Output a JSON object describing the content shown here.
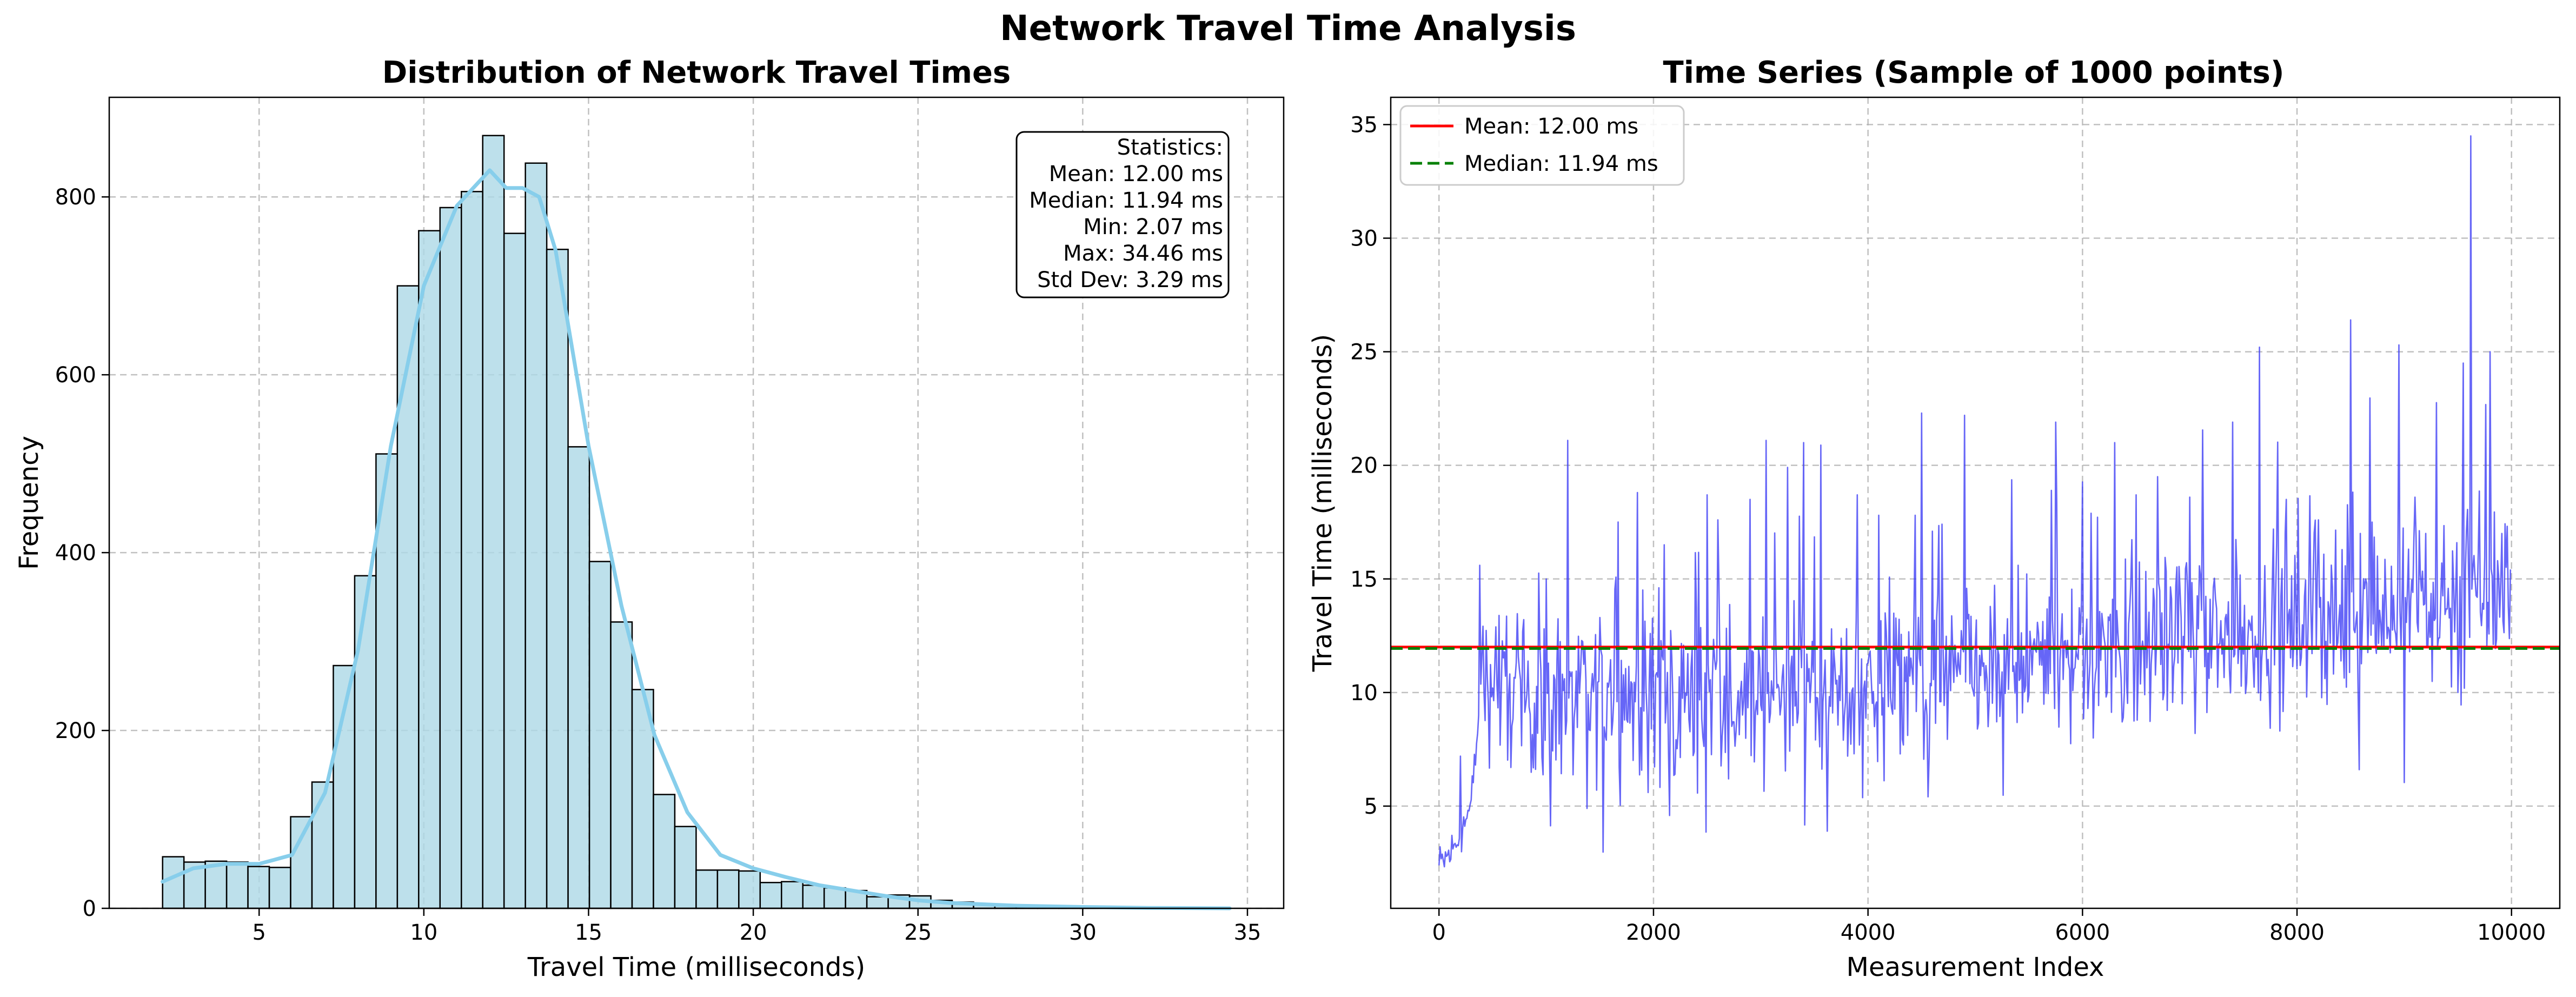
{
  "figure": {
    "title": "Network Travel Time Analysis"
  },
  "colors": {
    "hist_fill": "#add8e6",
    "kde": "#87ceeb",
    "series": "#3b3bf5",
    "mean": "#ff0000",
    "median": "#008000"
  },
  "chart_data": [
    {
      "type": "bar",
      "title": "Distribution of Network Travel Times",
      "xlabel": "Travel Time (milliseconds)",
      "ylabel": "Frequency",
      "xlim": [
        0.45,
        36.1
      ],
      "ylim": [
        0,
        912
      ],
      "xticks": [
        5,
        10,
        15,
        20,
        25,
        30,
        35
      ],
      "yticks": [
        0,
        200,
        400,
        600,
        800
      ],
      "grid": true,
      "bin_edges_range": [
        2.07,
        34.46
      ],
      "bin_count": 50,
      "values": [
        58,
        52,
        53,
        52,
        47,
        46,
        103,
        142,
        273,
        374,
        511,
        700,
        762,
        788,
        806,
        869,
        759,
        838,
        741,
        519,
        390,
        322,
        246,
        128,
        92,
        43,
        43,
        42,
        29,
        30,
        26,
        23,
        20,
        13,
        15,
        14,
        9,
        7,
        5,
        4,
        3,
        2,
        2,
        1,
        1,
        1,
        1,
        1,
        0,
        1
      ],
      "kde": {
        "x": [
          2.07,
          3,
          4,
          5,
          6,
          7,
          8,
          9,
          10,
          11,
          11.5,
          12,
          12.5,
          13,
          13.5,
          14,
          15,
          16,
          17,
          18,
          19,
          20,
          21,
          22,
          23,
          24,
          25,
          26,
          28,
          30,
          32,
          34.46
        ],
        "y": [
          30,
          45,
          50,
          50,
          60,
          130,
          290,
          520,
          700,
          790,
          810,
          830,
          810,
          810,
          800,
          740,
          520,
          340,
          195,
          108,
          60,
          45,
          35,
          26,
          20,
          14,
          9,
          6,
          3,
          1.5,
          0.5,
          0
        ]
      },
      "stats_box": [
        "Statistics:",
        "Mean: 12.00 ms",
        "Median: 11.94 ms",
        "Min: 2.07 ms",
        "Max: 34.46 ms",
        "Std Dev: 3.29 ms"
      ]
    },
    {
      "type": "line",
      "title": "Time Series (Sample of 1000 points)",
      "xlabel": "Measurement Index",
      "ylabel": "Travel Time (milliseconds)",
      "xlim": [
        -450,
        10450
      ],
      "ylim": [
        0.5,
        36.2
      ],
      "xticks": [
        0,
        2000,
        4000,
        6000,
        8000,
        10000
      ],
      "yticks": [
        5,
        10,
        15,
        20,
        25,
        30,
        35
      ],
      "grid": true,
      "legend_placement": "upper-left",
      "sample_points": 1000,
      "x_range": [
        0,
        9990
      ],
      "trend_anchors": {
        "x": [
          0,
          150,
          300,
          400,
          1000,
          2000,
          3000,
          4000,
          5000,
          6000,
          7000,
          8000,
          9000,
          9990
        ],
        "y": [
          2.3,
          3.2,
          5.0,
          10.5,
          9.5,
          9.8,
          10.0,
          10.4,
          10.9,
          11.6,
          12.3,
          13.0,
          13.8,
          15.2
        ]
      },
      "peaks": [
        {
          "x": 200,
          "y": 7.2
        },
        {
          "x": 380,
          "y": 15.6
        },
        {
          "x": 1000,
          "y": 15.0
        },
        {
          "x": 1200,
          "y": 21.1
        },
        {
          "x": 1500,
          "y": 13.3
        },
        {
          "x": 1850,
          "y": 18.8
        },
        {
          "x": 2100,
          "y": 16.5
        },
        {
          "x": 2500,
          "y": 18.7
        },
        {
          "x": 2600,
          "y": 17.6
        },
        {
          "x": 2900,
          "y": 18.5
        },
        {
          "x": 3050,
          "y": 21.1
        },
        {
          "x": 3400,
          "y": 21.0
        },
        {
          "x": 3900,
          "y": 18.7
        },
        {
          "x": 4100,
          "y": 17.8
        },
        {
          "x": 4500,
          "y": 22.3
        },
        {
          "x": 4600,
          "y": 17.1
        },
        {
          "x": 4900,
          "y": 22.2
        },
        {
          "x": 5400,
          "y": 15.6
        },
        {
          "x": 5750,
          "y": 21.9
        },
        {
          "x": 6300,
          "y": 21.0
        },
        {
          "x": 6500,
          "y": 18.7
        },
        {
          "x": 6700,
          "y": 19.5
        },
        {
          "x": 7000,
          "y": 18.6
        },
        {
          "x": 7400,
          "y": 21.9
        },
        {
          "x": 7650,
          "y": 25.2
        },
        {
          "x": 7900,
          "y": 18.5
        },
        {
          "x": 8200,
          "y": 17.6
        },
        {
          "x": 8500,
          "y": 26.4
        },
        {
          "x": 8700,
          "y": 17.5
        },
        {
          "x": 8950,
          "y": 25.3
        },
        {
          "x": 9100,
          "y": 18.6
        },
        {
          "x": 9200,
          "y": 17.0
        },
        {
          "x": 9550,
          "y": 24.5
        },
        {
          "x": 9620,
          "y": 34.5
        },
        {
          "x": 9800,
          "y": 25.0
        }
      ],
      "dips": [
        {
          "x": 1380,
          "y": 4.9
        },
        {
          "x": 1950,
          "y": 5.6
        },
        {
          "x": 2200,
          "y": 6.4
        },
        {
          "x": 2700,
          "y": 6.2
        },
        {
          "x": 4300,
          "y": 7.3
        },
        {
          "x": 6100,
          "y": 8.0
        },
        {
          "x": 7050,
          "y": 8.2
        },
        {
          "x": 9500,
          "y": 10.0
        }
      ],
      "hlines": [
        {
          "label": "Mean: 12.00 ms",
          "y": 12.0
        },
        {
          "label": "Median: 11.94 ms",
          "y": 11.94
        }
      ]
    }
  ]
}
